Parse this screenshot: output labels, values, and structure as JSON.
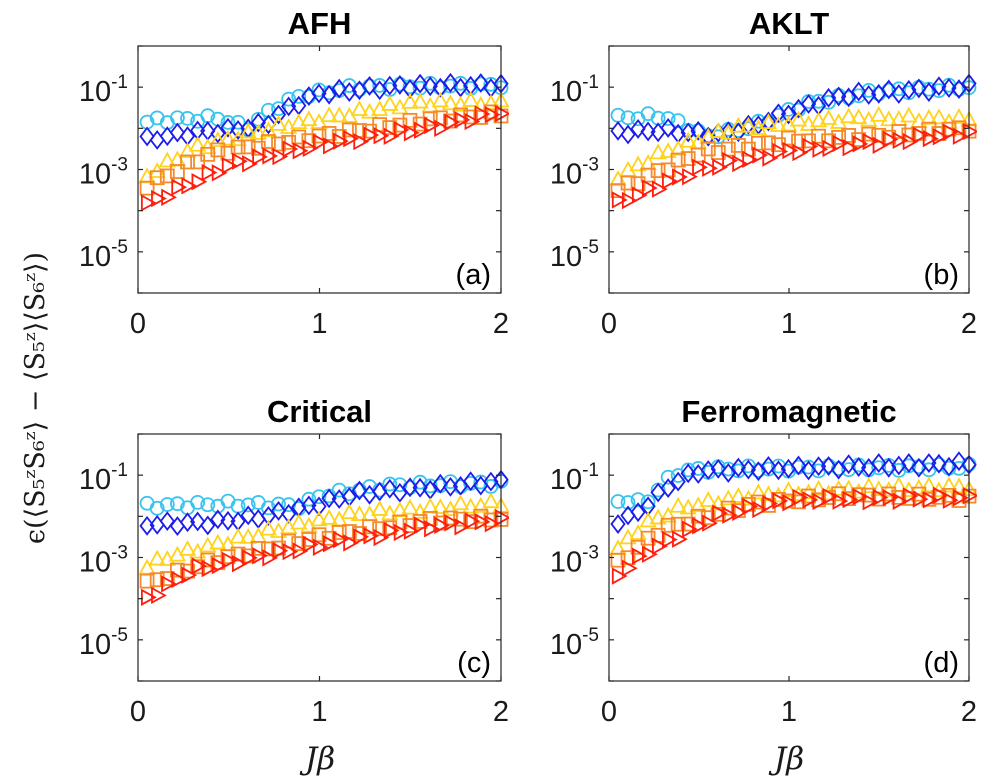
{
  "figure": {
    "xlabel": "Jβ",
    "ylabel": "ϵ(⟨S₅ᶻS₆ᶻ⟩ − ⟨S₅ᶻ⟩⟨S₆ᶻ⟩)"
  },
  "colors": {
    "cyan_circles": "#36c4ef",
    "blue_diamonds": "#1d1dea",
    "yellow_triangles": "#ffd21c",
    "orange_squares": "#f58a2a",
    "red_triangles": "#ff1e0e"
  },
  "chart_data": [
    {
      "type": "scatter",
      "title": "AFH",
      "panel_label": "(a)",
      "xlim": [
        0,
        2
      ],
      "ylim_log10": [
        -6,
        0
      ],
      "yscale": "log",
      "xticks": [
        "0",
        "1",
        "2"
      ],
      "yticks": [
        {
          "base": "10",
          "exp": "-1"
        },
        {
          "base": "10",
          "exp": "-3"
        },
        {
          "base": "10",
          "exp": "-5"
        }
      ],
      "series": [
        {
          "name": "cyan circles",
          "marker": "circle",
          "log10_knots": [
            [
              0.0,
              -1.9
            ],
            [
              0.1,
              -1.8
            ],
            [
              0.45,
              -1.75
            ],
            [
              0.6,
              -2.0
            ],
            [
              0.75,
              -1.5
            ],
            [
              0.9,
              -1.2
            ],
            [
              1.2,
              -1.0
            ],
            [
              2.0,
              -0.95
            ]
          ]
        },
        {
          "name": "blue diamonds",
          "marker": "diamond",
          "log10_knots": [
            [
              0.0,
              -2.3
            ],
            [
              0.3,
              -2.1
            ],
            [
              0.5,
              -2.05
            ],
            [
              0.7,
              -1.9
            ],
            [
              0.85,
              -1.45
            ],
            [
              1.0,
              -1.15
            ],
            [
              1.4,
              -0.98
            ],
            [
              2.0,
              -0.95
            ]
          ]
        },
        {
          "name": "yellow triangles",
          "marker": "triangle-up",
          "log10_knots": [
            [
              0.0,
              -3.3
            ],
            [
              0.3,
              -2.5
            ],
            [
              0.8,
              -1.95
            ],
            [
              1.5,
              -1.4
            ],
            [
              2.0,
              -1.4
            ]
          ]
        },
        {
          "name": "orange squares",
          "marker": "square",
          "log10_knots": [
            [
              0.0,
              -3.5
            ],
            [
              0.4,
              -2.6
            ],
            [
              1.0,
              -2.2
            ],
            [
              1.6,
              -1.8
            ],
            [
              2.0,
              -1.65
            ]
          ]
        },
        {
          "name": "red triangles",
          "marker": "triangle-right",
          "log10_knots": [
            [
              0.0,
              -3.95
            ],
            [
              0.5,
              -2.9
            ],
            [
              1.0,
              -2.4
            ],
            [
              1.6,
              -2.0
            ],
            [
              2.0,
              -1.6
            ]
          ]
        }
      ]
    },
    {
      "type": "scatter",
      "title": "AKLT",
      "panel_label": "(b)",
      "xlim": [
        0,
        2
      ],
      "ylim_log10": [
        -6,
        0
      ],
      "yscale": "log",
      "xticks": [
        "0",
        "1",
        "2"
      ],
      "yticks": [
        {
          "base": "10",
          "exp": "-1"
        },
        {
          "base": "10",
          "exp": "-3"
        },
        {
          "base": "10",
          "exp": "-5"
        }
      ],
      "series": [
        {
          "name": "cyan circles",
          "marker": "circle",
          "log10_knots": [
            [
              0.0,
              -1.75
            ],
            [
              0.3,
              -1.7
            ],
            [
              0.55,
              -2.2
            ],
            [
              0.8,
              -1.95
            ],
            [
              1.1,
              -1.4
            ],
            [
              1.5,
              -1.1
            ],
            [
              2.0,
              -1.0
            ]
          ]
        },
        {
          "name": "blue diamonds",
          "marker": "diamond",
          "log10_knots": [
            [
              0.0,
              -2.1
            ],
            [
              0.3,
              -2.05
            ],
            [
              0.6,
              -2.15
            ],
            [
              0.8,
              -1.95
            ],
            [
              1.0,
              -1.6
            ],
            [
              1.3,
              -1.2
            ],
            [
              2.0,
              -0.98
            ]
          ]
        },
        {
          "name": "yellow triangles",
          "marker": "triangle-up",
          "log10_knots": [
            [
              0.0,
              -3.3
            ],
            [
              0.3,
              -2.6
            ],
            [
              0.7,
              -2.0
            ],
            [
              1.4,
              -1.75
            ],
            [
              2.0,
              -1.8
            ]
          ]
        },
        {
          "name": "orange squares",
          "marker": "square",
          "log10_knots": [
            [
              0.0,
              -3.6
            ],
            [
              0.5,
              -2.6
            ],
            [
              1.0,
              -2.3
            ],
            [
              1.6,
              -2.15
            ],
            [
              2.0,
              -2.0
            ]
          ]
        },
        {
          "name": "red triangles",
          "marker": "triangle-right",
          "log10_knots": [
            [
              0.0,
              -3.9
            ],
            [
              0.5,
              -3.0
            ],
            [
              1.0,
              -2.55
            ],
            [
              1.6,
              -2.3
            ],
            [
              2.0,
              -2.1
            ]
          ]
        }
      ]
    },
    {
      "type": "scatter",
      "title": "Critical",
      "panel_label": "(c)",
      "xlim": [
        0,
        2
      ],
      "ylim_log10": [
        -6,
        0
      ],
      "yscale": "log",
      "xticks": [
        "0",
        "1",
        "2"
      ],
      "yticks": [
        {
          "base": "10",
          "exp": "-1"
        },
        {
          "base": "10",
          "exp": "-3"
        },
        {
          "base": "10",
          "exp": "-5"
        }
      ],
      "series": [
        {
          "name": "cyan circles",
          "marker": "circle",
          "log10_knots": [
            [
              0.0,
              -1.75
            ],
            [
              0.5,
              -1.7
            ],
            [
              0.9,
              -1.75
            ],
            [
              1.0,
              -1.5
            ],
            [
              1.4,
              -1.25
            ],
            [
              2.0,
              -1.2
            ]
          ]
        },
        {
          "name": "blue diamonds",
          "marker": "diamond",
          "log10_knots": [
            [
              0.0,
              -2.2
            ],
            [
              0.4,
              -2.15
            ],
            [
              0.7,
              -2.0
            ],
            [
              0.95,
              -1.75
            ],
            [
              1.2,
              -1.45
            ],
            [
              2.0,
              -1.15
            ]
          ]
        },
        {
          "name": "yellow triangles",
          "marker": "triangle-up",
          "log10_knots": [
            [
              0.0,
              -3.3
            ],
            [
              0.2,
              -2.95
            ],
            [
              0.8,
              -2.3
            ],
            [
              1.2,
              -1.95
            ],
            [
              2.0,
              -1.7
            ]
          ]
        },
        {
          "name": "orange squares",
          "marker": "square",
          "log10_knots": [
            [
              0.0,
              -3.7
            ],
            [
              0.4,
              -3.1
            ],
            [
              1.0,
              -2.5
            ],
            [
              1.6,
              -2.1
            ],
            [
              2.0,
              -2.05
            ]
          ]
        },
        {
          "name": "red triangles",
          "marker": "triangle-right",
          "log10_knots": [
            [
              0.0,
              -4.15
            ],
            [
              0.3,
              -3.3
            ],
            [
              1.0,
              -2.7
            ],
            [
              1.6,
              -2.25
            ],
            [
              2.0,
              -2.1
            ]
          ]
        }
      ]
    },
    {
      "type": "scatter",
      "title": "Ferromagnetic",
      "panel_label": "(d)",
      "xlim": [
        0,
        2
      ],
      "ylim_log10": [
        -6,
        0
      ],
      "yscale": "log",
      "xticks": [
        "0",
        "1",
        "2"
      ],
      "yticks": [
        {
          "base": "10",
          "exp": "-1"
        },
        {
          "base": "10",
          "exp": "-3"
        },
        {
          "base": "10",
          "exp": "-5"
        }
      ],
      "series": [
        {
          "name": "cyan circles",
          "marker": "circle",
          "log10_knots": [
            [
              0.0,
              -1.7
            ],
            [
              0.1,
              -1.6
            ],
            [
              0.2,
              -1.7
            ],
            [
              0.3,
              -1.2
            ],
            [
              0.4,
              -0.9
            ],
            [
              0.6,
              -0.85
            ],
            [
              2.0,
              -0.8
            ]
          ]
        },
        {
          "name": "blue diamonds",
          "marker": "diamond",
          "log10_knots": [
            [
              0.0,
              -2.2
            ],
            [
              0.15,
              -1.95
            ],
            [
              0.35,
              -1.2
            ],
            [
              0.5,
              -0.9
            ],
            [
              1.0,
              -0.83
            ],
            [
              2.0,
              -0.72
            ]
          ]
        },
        {
          "name": "yellow triangles",
          "marker": "triangle-up",
          "log10_knots": [
            [
              0.0,
              -3.0
            ],
            [
              0.2,
              -2.2
            ],
            [
              0.4,
              -1.8
            ],
            [
              0.8,
              -1.5
            ],
            [
              1.4,
              -1.35
            ],
            [
              2.0,
              -1.3
            ]
          ]
        },
        {
          "name": "orange squares",
          "marker": "square",
          "log10_knots": [
            [
              0.0,
              -3.3
            ],
            [
              0.3,
              -2.3
            ],
            [
              0.8,
              -1.7
            ],
            [
              1.3,
              -1.5
            ],
            [
              2.0,
              -1.55
            ]
          ]
        },
        {
          "name": "red triangles",
          "marker": "triangle-right",
          "log10_knots": [
            [
              0.0,
              -3.6
            ],
            [
              0.2,
              -2.9
            ],
            [
              0.6,
              -2.0
            ],
            [
              1.0,
              -1.6
            ],
            [
              2.0,
              -1.55
            ]
          ]
        }
      ]
    }
  ]
}
